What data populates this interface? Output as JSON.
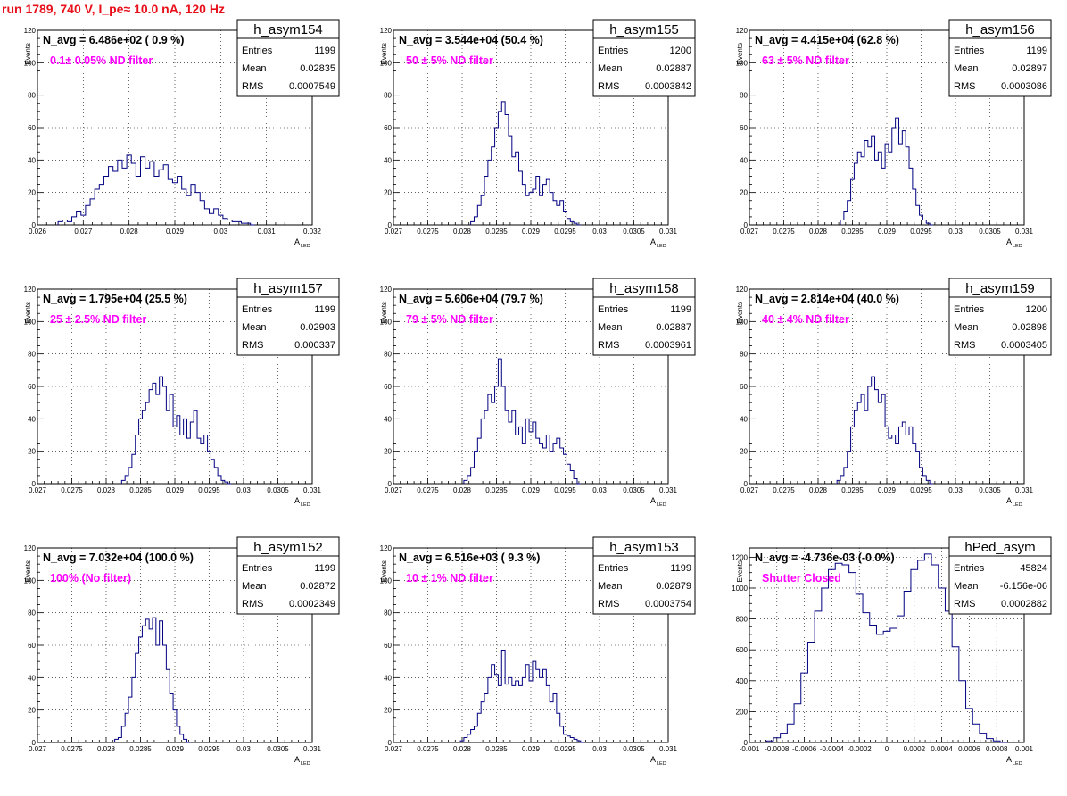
{
  "page_title": "run 1789,   740 V, I_pe≈ 10.0 nA, 120 Hz",
  "chart_data": [
    {
      "type": "histogram",
      "stats_title": "h_asym154",
      "navg_text": "N_avg = 6.486e+02 ( 0.9 %)",
      "filter_text": "0.1± 0.05% ND filter",
      "stats": {
        "entries_label": "Entries",
        "entries": "1199",
        "mean_label": "Mean",
        "mean": "0.02835",
        "rms_label": "RMS",
        "rms": "0.0007549"
      },
      "ylabel": "Events",
      "xlabel": "A",
      "xlabel_sub": "LED",
      "xlim": [
        0.026,
        0.032
      ],
      "ylim": [
        0,
        120
      ],
      "xticks": [
        0.026,
        0.027,
        0.028,
        0.029,
        0.03,
        0.031,
        0.032
      ],
      "xtick_labels": [
        "0.026",
        "0.027",
        "0.028",
        "0.029",
        "0.03",
        "0.031",
        "0.032"
      ],
      "yticks": [
        0,
        20,
        40,
        60,
        80,
        100,
        120
      ],
      "ytick_labels": [
        "0",
        "20",
        "40",
        "60",
        "80",
        "100",
        "120"
      ],
      "grid": true,
      "x": [
        0.0265,
        0.0266,
        0.0267,
        0.0268,
        0.0269,
        0.027,
        0.0271,
        0.0272,
        0.0273,
        0.0274,
        0.0275,
        0.0276,
        0.0277,
        0.0278,
        0.0279,
        0.028,
        0.0281,
        0.0282,
        0.0283,
        0.0284,
        0.0285,
        0.0286,
        0.0287,
        0.0288,
        0.0289,
        0.029,
        0.0291,
        0.0292,
        0.0293,
        0.0294,
        0.0295,
        0.0296,
        0.0297,
        0.0298,
        0.0299,
        0.03,
        0.0301,
        0.0302,
        0.0303,
        0.0304,
        0.0305,
        0.0306,
        0.0307
      ],
      "y": [
        2,
        3,
        2,
        5,
        8,
        6,
        12,
        16,
        22,
        25,
        30,
        36,
        33,
        40,
        35,
        43,
        38,
        30,
        42,
        35,
        39,
        30,
        34,
        37,
        28,
        26,
        30,
        22,
        18,
        25,
        20,
        15,
        10,
        7,
        10,
        6,
        4,
        3,
        2,
        2,
        1,
        1,
        0
      ]
    },
    {
      "type": "histogram",
      "stats_title": "h_asym155",
      "navg_text": "N_avg = 3.544e+04 (50.4 %)",
      "filter_text": "50 ± 5% ND filter",
      "stats": {
        "entries_label": "Entries",
        "entries": "1200",
        "mean_label": "Mean",
        "mean": "0.02887",
        "rms_label": "RMS",
        "rms": "0.0003842"
      },
      "ylabel": "Events",
      "xlabel": "A",
      "xlabel_sub": "LED",
      "xlim": [
        0.027,
        0.031
      ],
      "ylim": [
        0,
        120
      ],
      "xticks": [
        0.027,
        0.0275,
        0.028,
        0.0285,
        0.029,
        0.0295,
        0.03,
        0.0305,
        0.031
      ],
      "xtick_labels": [
        "0.027",
        "0.0275",
        "0.028",
        "0.0285",
        "0.029",
        "0.0295",
        "0.03",
        "0.0305",
        "0.031"
      ],
      "yticks": [
        0,
        20,
        40,
        60,
        80,
        100,
        120
      ],
      "ytick_labels": [
        "0",
        "20",
        "40",
        "60",
        "80",
        "100",
        "120"
      ],
      "grid": true,
      "x": [
        0.02815,
        0.0282,
        0.02825,
        0.0283,
        0.02835,
        0.0284,
        0.02845,
        0.0285,
        0.02855,
        0.0286,
        0.02865,
        0.0287,
        0.02875,
        0.0288,
        0.02885,
        0.0289,
        0.02895,
        0.029,
        0.02905,
        0.0291,
        0.02915,
        0.0292,
        0.02925,
        0.0293,
        0.02935,
        0.0294,
        0.02945,
        0.0295,
        0.02955,
        0.0296,
        0.02965,
        0.0297
      ],
      "y": [
        2,
        5,
        12,
        18,
        30,
        40,
        48,
        60,
        70,
        76,
        68,
        55,
        42,
        45,
        33,
        25,
        18,
        20,
        22,
        30,
        18,
        25,
        28,
        20,
        15,
        12,
        15,
        8,
        4,
        2,
        1,
        0
      ]
    },
    {
      "type": "histogram",
      "stats_title": "h_asym156",
      "navg_text": "N_avg = 4.415e+04 (62.8 %)",
      "filter_text": "63 ± 5% ND filter",
      "stats": {
        "entries_label": "Entries",
        "entries": "1199",
        "mean_label": "Mean",
        "mean": "0.02897",
        "rms_label": "RMS",
        "rms": "0.0003086"
      },
      "ylabel": "Events",
      "xlabel": "A",
      "xlabel_sub": "LED",
      "xlim": [
        0.027,
        0.031
      ],
      "ylim": [
        0,
        120
      ],
      "xticks": [
        0.027,
        0.0275,
        0.028,
        0.0285,
        0.029,
        0.0295,
        0.03,
        0.0305,
        0.031
      ],
      "xtick_labels": [
        "0.027",
        "0.0275",
        "0.028",
        "0.0285",
        "0.029",
        "0.0295",
        "0.03",
        "0.0305",
        "0.031"
      ],
      "yticks": [
        0,
        20,
        40,
        60,
        80,
        100,
        120
      ],
      "ytick_labels": [
        "0",
        "20",
        "40",
        "60",
        "80",
        "100",
        "120"
      ],
      "grid": true,
      "x": [
        0.02835,
        0.0284,
        0.02845,
        0.0285,
        0.02855,
        0.0286,
        0.02865,
        0.0287,
        0.02875,
        0.0288,
        0.02885,
        0.0289,
        0.02895,
        0.029,
        0.02905,
        0.0291,
        0.02915,
        0.0292,
        0.02925,
        0.0293,
        0.02935,
        0.0294,
        0.02945,
        0.0295,
        0.02955,
        0.0296,
        0.02965
      ],
      "y": [
        3,
        8,
        15,
        28,
        38,
        45,
        42,
        52,
        48,
        55,
        40,
        45,
        35,
        50,
        45,
        60,
        66,
        50,
        58,
        48,
        35,
        22,
        12,
        6,
        3,
        1,
        0
      ]
    },
    {
      "type": "histogram",
      "stats_title": "h_asym157",
      "navg_text": "N_avg = 1.795e+04 (25.5 %)",
      "filter_text": "25 ± 2.5% ND filter",
      "stats": {
        "entries_label": "Entries",
        "entries": "1199",
        "mean_label": "Mean",
        "mean": "0.02903",
        "rms_label": "RMS",
        "rms": "0.000337"
      },
      "ylabel": "Events",
      "xlabel": "A",
      "xlabel_sub": "LED",
      "xlim": [
        0.027,
        0.031
      ],
      "ylim": [
        0,
        120
      ],
      "xticks": [
        0.027,
        0.0275,
        0.028,
        0.0285,
        0.029,
        0.0295,
        0.03,
        0.0305,
        0.031
      ],
      "xtick_labels": [
        "0.027",
        "0.0275",
        "0.028",
        "0.0285",
        "0.029",
        "0.0295",
        "0.03",
        "0.0305",
        "0.031"
      ],
      "yticks": [
        0,
        20,
        40,
        60,
        80,
        100,
        120
      ],
      "ytick_labels": [
        "0",
        "20",
        "40",
        "60",
        "80",
        "100",
        "120"
      ],
      "grid": true,
      "x": [
        0.02825,
        0.0283,
        0.02835,
        0.0284,
        0.02845,
        0.0285,
        0.02855,
        0.0286,
        0.02865,
        0.0287,
        0.02875,
        0.0288,
        0.02885,
        0.0289,
        0.02895,
        0.029,
        0.02905,
        0.0291,
        0.02915,
        0.0292,
        0.02925,
        0.0293,
        0.02935,
        0.0294,
        0.02945,
        0.0295,
        0.02955,
        0.0296,
        0.02965,
        0.0297,
        0.02975,
        0.0298
      ],
      "y": [
        2,
        5,
        10,
        18,
        30,
        40,
        45,
        50,
        58,
        62,
        55,
        66,
        60,
        45,
        55,
        35,
        42,
        30,
        40,
        28,
        38,
        45,
        28,
        25,
        30,
        20,
        15,
        10,
        5,
        2,
        1,
        0
      ]
    },
    {
      "type": "histogram",
      "stats_title": "h_asym158",
      "navg_text": "N_avg = 5.606e+04 (79.7 %)",
      "filter_text": "79 ± 5% ND filter",
      "stats": {
        "entries_label": "Entries",
        "entries": "1199",
        "mean_label": "Mean",
        "mean": "0.02887",
        "rms_label": "RMS",
        "rms": "0.0003961"
      },
      "ylabel": "Events",
      "xlabel": "A",
      "xlabel_sub": "LED",
      "xlim": [
        0.027,
        0.031
      ],
      "ylim": [
        0,
        120
      ],
      "xticks": [
        0.027,
        0.0275,
        0.028,
        0.0285,
        0.029,
        0.0295,
        0.03,
        0.0305,
        0.031
      ],
      "xtick_labels": [
        "0.027",
        "0.0275",
        "0.028",
        "0.0285",
        "0.029",
        "0.0295",
        "0.03",
        "0.0305",
        "0.031"
      ],
      "yticks": [
        0,
        20,
        40,
        60,
        80,
        100,
        120
      ],
      "ytick_labels": [
        "0",
        "20",
        "40",
        "60",
        "80",
        "100",
        "120"
      ],
      "grid": true,
      "x": [
        0.02805,
        0.0281,
        0.02815,
        0.0282,
        0.02825,
        0.0283,
        0.02835,
        0.0284,
        0.02845,
        0.0285,
        0.02855,
        0.0286,
        0.02865,
        0.0287,
        0.02875,
        0.0288,
        0.02885,
        0.0289,
        0.02895,
        0.029,
        0.02905,
        0.0291,
        0.02915,
        0.0292,
        0.02925,
        0.0293,
        0.02935,
        0.0294,
        0.02945,
        0.0295,
        0.02955,
        0.0296,
        0.02965,
        0.0297
      ],
      "y": [
        2,
        5,
        10,
        20,
        28,
        40,
        45,
        55,
        50,
        60,
        77,
        60,
        45,
        38,
        45,
        30,
        35,
        25,
        40,
        32,
        38,
        28,
        25,
        22,
        30,
        20,
        25,
        28,
        22,
        18,
        12,
        8,
        3,
        0
      ]
    },
    {
      "type": "histogram",
      "stats_title": "h_asym159",
      "navg_text": "N_avg = 2.814e+04 (40.0 %)",
      "filter_text": "40 ± 4% ND filter",
      "stats": {
        "entries_label": "Entries",
        "entries": "1200",
        "mean_label": "Mean",
        "mean": "0.02898",
        "rms_label": "RMS",
        "rms": "0.0003405"
      },
      "ylabel": "Events",
      "xlabel": "A",
      "xlabel_sub": "LED",
      "xlim": [
        0.027,
        0.031
      ],
      "ylim": [
        0,
        120
      ],
      "xticks": [
        0.027,
        0.0275,
        0.028,
        0.0285,
        0.029,
        0.0295,
        0.03,
        0.0305,
        0.031
      ],
      "xtick_labels": [
        "0.027",
        "0.0275",
        "0.028",
        "0.0285",
        "0.029",
        "0.0295",
        "0.03",
        "0.0305",
        "0.031"
      ],
      "yticks": [
        0,
        20,
        40,
        60,
        80,
        100,
        120
      ],
      "ytick_labels": [
        "0",
        "20",
        "40",
        "60",
        "80",
        "100",
        "120"
      ],
      "grid": true,
      "x": [
        0.0283,
        0.02835,
        0.0284,
        0.02845,
        0.0285,
        0.02855,
        0.0286,
        0.02865,
        0.0287,
        0.02875,
        0.0288,
        0.02885,
        0.0289,
        0.02895,
        0.029,
        0.02905,
        0.0291,
        0.02915,
        0.0292,
        0.02925,
        0.0293,
        0.02935,
        0.0294,
        0.02945,
        0.0295,
        0.02955,
        0.0296,
        0.02965
      ],
      "y": [
        2,
        5,
        10,
        20,
        35,
        45,
        50,
        55,
        45,
        60,
        66,
        58,
        50,
        55,
        35,
        28,
        30,
        25,
        35,
        38,
        30,
        35,
        25,
        20,
        10,
        5,
        2,
        0
      ]
    },
    {
      "type": "histogram",
      "stats_title": "h_asym152",
      "navg_text": "N_avg = 7.032e+04 (100.0 %)",
      "filter_text": "100% (No filter)",
      "stats": {
        "entries_label": "Entries",
        "entries": "1199",
        "mean_label": "Mean",
        "mean": "0.02872",
        "rms_label": "RMS",
        "rms": "0.0002349"
      },
      "ylabel": "Events",
      "xlabel": "A",
      "xlabel_sub": "LED",
      "xlim": [
        0.027,
        0.031
      ],
      "ylim": [
        0,
        120
      ],
      "xticks": [
        0.027,
        0.0275,
        0.028,
        0.0285,
        0.029,
        0.0295,
        0.03,
        0.0305,
        0.031
      ],
      "xtick_labels": [
        "0.027",
        "0.0275",
        "0.028",
        "0.0285",
        "0.029",
        "0.0295",
        "0.03",
        "0.0305",
        "0.031"
      ],
      "yticks": [
        0,
        20,
        40,
        60,
        80,
        100,
        120
      ],
      "ytick_labels": [
        "0",
        "20",
        "40",
        "60",
        "80",
        "100",
        "120"
      ],
      "grid": true,
      "x": [
        0.02815,
        0.0282,
        0.02825,
        0.0283,
        0.02835,
        0.0284,
        0.02845,
        0.0285,
        0.02855,
        0.0286,
        0.02865,
        0.0287,
        0.02875,
        0.0288,
        0.02885,
        0.0289,
        0.02895,
        0.029,
        0.02905,
        0.0291,
        0.02915,
        0.0292
      ],
      "y": [
        2,
        3,
        10,
        18,
        28,
        40,
        55,
        65,
        72,
        76,
        70,
        77,
        60,
        75,
        60,
        45,
        30,
        20,
        10,
        5,
        2,
        0
      ]
    },
    {
      "type": "histogram",
      "stats_title": "h_asym153",
      "navg_text": "N_avg = 6.516e+03 ( 9.3 %)",
      "filter_text": "10 ± 1% ND filter",
      "stats": {
        "entries_label": "Entries",
        "entries": "1199",
        "mean_label": "Mean",
        "mean": "0.02879",
        "rms_label": "RMS",
        "rms": "0.0003754"
      },
      "ylabel": "Events",
      "xlabel": "A",
      "xlabel_sub": "LED",
      "xlim": [
        0.027,
        0.031
      ],
      "ylim": [
        0,
        120
      ],
      "xticks": [
        0.027,
        0.0275,
        0.028,
        0.0285,
        0.029,
        0.0295,
        0.03,
        0.0305,
        0.031
      ],
      "xtick_labels": [
        "0.027",
        "0.0275",
        "0.028",
        "0.0285",
        "0.029",
        "0.0295",
        "0.03",
        "0.0305",
        "0.031"
      ],
      "yticks": [
        0,
        20,
        40,
        60,
        80,
        100,
        120
      ],
      "ytick_labels": [
        "0",
        "20",
        "40",
        "60",
        "80",
        "100",
        "120"
      ],
      "grid": true,
      "x": [
        0.028,
        0.02805,
        0.0281,
        0.02815,
        0.0282,
        0.02825,
        0.0283,
        0.02835,
        0.0284,
        0.02845,
        0.0285,
        0.02855,
        0.0286,
        0.02865,
        0.0287,
        0.02875,
        0.0288,
        0.02885,
        0.0289,
        0.02895,
        0.029,
        0.02905,
        0.0291,
        0.02915,
        0.0292,
        0.02925,
        0.0293,
        0.02935,
        0.0294,
        0.02945,
        0.0295,
        0.02955,
        0.0296,
        0.02965,
        0.0297,
        0.02975
      ],
      "y": [
        1,
        3,
        5,
        8,
        10,
        18,
        25,
        30,
        40,
        48,
        42,
        35,
        57,
        36,
        40,
        35,
        38,
        35,
        40,
        48,
        38,
        50,
        45,
        40,
        45,
        35,
        25,
        30,
        18,
        10,
        5,
        4,
        3,
        2,
        1,
        0
      ]
    },
    {
      "type": "histogram",
      "stats_title": "hPed_asym",
      "navg_text": "N_avg = -4.736e-03 (-0.0%)",
      "filter_text": "Shutter Closed",
      "stats": {
        "entries_label": "Entries",
        "entries": "45824",
        "mean_label": "Mean",
        "mean": "-6.156e-06",
        "rms_label": "RMS",
        "rms": "0.0002882"
      },
      "ylabel": "Events",
      "xlabel": "A",
      "xlabel_sub": "LED",
      "xlim": [
        -0.001,
        0.001
      ],
      "ylim": [
        0,
        1260
      ],
      "xticks": [
        -0.001,
        -0.0008,
        -0.0006,
        -0.0004,
        -0.0002,
        0,
        0.0002,
        0.0004,
        0.0006,
        0.0008,
        0.001
      ],
      "xtick_labels": [
        "-0.001",
        "-0.0008",
        "-0.0006",
        "-0.0004",
        "-0.0002",
        "0",
        "0.0002",
        "0.0004",
        "0.0006",
        "0.0008",
        "0.001"
      ],
      "yticks": [
        0,
        200,
        400,
        600,
        800,
        1000,
        1200
      ],
      "ytick_labels": [
        "0",
        "200",
        "400",
        "600",
        "800",
        "1000",
        "1200"
      ],
      "grid": true,
      "x": [
        -0.00085,
        -0.0008,
        -0.00075,
        -0.0007,
        -0.00065,
        -0.0006,
        -0.00055,
        -0.0005,
        -0.00045,
        -0.0004,
        -0.00035,
        -0.0003,
        -0.00025,
        -0.0002,
        -0.00015,
        -0.0001,
        -5e-05,
        0,
        5e-05,
        0.0001,
        0.00015,
        0.0002,
        0.00025,
        0.0003,
        0.00035,
        0.0004,
        0.00045,
        0.0005,
        0.00055,
        0.0006,
        0.00065,
        0.0007,
        0.00075,
        0.0008,
        0.00085
      ],
      "y": [
        10,
        30,
        60,
        120,
        250,
        450,
        650,
        850,
        1000,
        1120,
        1160,
        1150,
        1100,
        960,
        840,
        760,
        700,
        720,
        740,
        820,
        980,
        1120,
        1180,
        1220,
        1150,
        1000,
        850,
        620,
        400,
        220,
        120,
        60,
        25,
        10,
        0
      ]
    }
  ]
}
